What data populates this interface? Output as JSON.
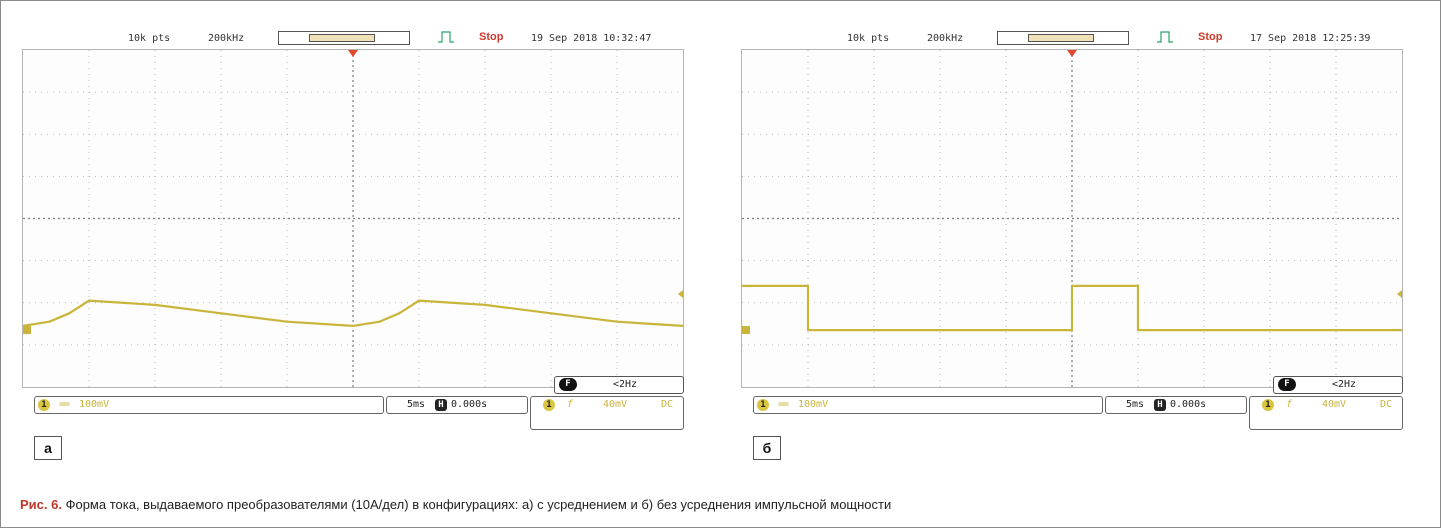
{
  "figure": {
    "caption_number": "Рис. 6.",
    "caption_text": "Форма тока, выдаваемого преобразователями (10А/дел) в конфигурациях: а) с усреднением и б) без усреднения импульсной мощности"
  },
  "colors": {
    "trace": "#c9b53a",
    "grid": "#a9a9a9",
    "stop": "#d23a2c",
    "trigger_marker": "#e04a2a"
  },
  "panels": [
    {
      "label": "а",
      "header": {
        "points": "10k pts",
        "rate": "200kHz",
        "status": "Stop",
        "timestamp": "19 Sep 2018 10:32:47"
      },
      "freq_icon": "F",
      "freq": "<2Hz",
      "ch1": {
        "badge": "1",
        "coupling": "==",
        "vdiv": "100mV"
      },
      "timebase": {
        "tdiv": "5ms",
        "hicon": "H",
        "hpos": "0.000s"
      },
      "trigger": {
        "badge": "1",
        "slope": "f",
        "level": "40mV",
        "coupling": "DC"
      }
    },
    {
      "label": "б",
      "header": {
        "points": "10k pts",
        "rate": "200kHz",
        "status": "Stop",
        "timestamp": "17 Sep 2018 12:25:39"
      },
      "freq_icon": "F",
      "freq": "<2Hz",
      "ch1": {
        "badge": "1",
        "coupling": "==",
        "vdiv": "100mV"
      },
      "timebase": {
        "tdiv": "5ms",
        "hicon": "H",
        "hpos": "0.000s"
      },
      "trigger": {
        "badge": "1",
        "slope": "f",
        "level": "40mV",
        "coupling": "DC"
      }
    }
  ],
  "chart_data": [
    {
      "type": "line",
      "x_divisions": 10,
      "y_divisions": 8,
      "grid": true,
      "xlim": [
        -5,
        5
      ],
      "ylim": [
        -4,
        4
      ],
      "series": [
        {
          "x": [
            -5,
            -4.6,
            -4.3,
            -4.1,
            -4.0,
            -3.0,
            -2.0,
            -1.0,
            0.0,
            0.4,
            0.7,
            0.9,
            1.0,
            2.0,
            3.0,
            4.0,
            5.0
          ],
          "y": [
            -2.55,
            -2.45,
            -2.25,
            -2.05,
            -1.95,
            -2.05,
            -2.25,
            -2.45,
            -2.55,
            -2.45,
            -2.25,
            -2.05,
            -1.95,
            -2.05,
            -2.25,
            -2.45,
            -2.55
          ]
        }
      ]
    },
    {
      "type": "line",
      "x_divisions": 10,
      "y_divisions": 8,
      "grid": true,
      "xlim": [
        -5,
        5
      ],
      "ylim": [
        -4,
        4
      ],
      "series": [
        {
          "x": [
            -5,
            -4.0,
            -4.0,
            0.0,
            0.0,
            1.0,
            1.0,
            5.0
          ],
          "y": [
            -1.6,
            -1.6,
            -2.65,
            -2.65,
            -1.6,
            -1.6,
            -2.65,
            -2.65
          ]
        }
      ]
    }
  ]
}
